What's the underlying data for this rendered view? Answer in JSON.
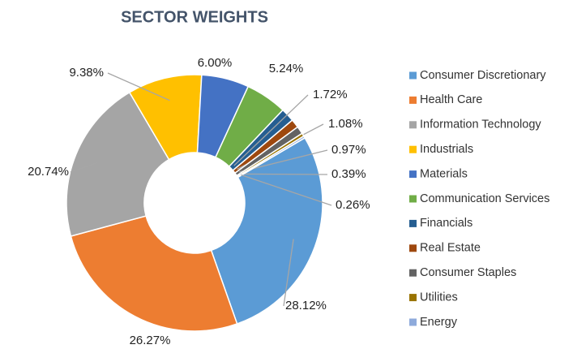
{
  "chart_data": {
    "type": "donut",
    "title": "SECTOR WEIGHTS",
    "categories": [
      "Consumer Discretionary",
      "Health Care",
      "Information Technology",
      "Industrials",
      "Materials",
      "Communication Services",
      "Financials",
      "Real Estate",
      "Consumer Staples",
      "Utilities",
      "Energy"
    ],
    "values": [
      28.12,
      26.27,
      20.74,
      9.38,
      6.0,
      5.24,
      1.72,
      1.08,
      0.97,
      0.39,
      0.26
    ],
    "value_labels": [
      "28.12%",
      "26.27%",
      "20.74%",
      "9.38%",
      "6.00%",
      "5.24%",
      "1.72%",
      "1.08%",
      "0.97%",
      "0.39%",
      "0.26%"
    ],
    "colors": [
      "#5b9bd5",
      "#ed7d31",
      "#a5a5a5",
      "#ffc000",
      "#4472c4",
      "#70ad47",
      "#255e91",
      "#9e480e",
      "#636363",
      "#997300",
      "#8eaadb"
    ],
    "legend": "right"
  }
}
